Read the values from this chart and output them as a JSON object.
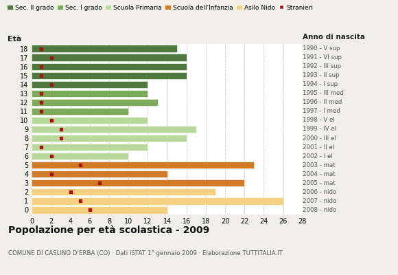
{
  "ages": [
    18,
    17,
    16,
    15,
    14,
    13,
    12,
    11,
    10,
    9,
    8,
    7,
    6,
    5,
    4,
    3,
    2,
    1,
    0
  ],
  "years": [
    "1990 - V sup",
    "1991 - VI sup",
    "1992 - III sup",
    "1993 - II sup",
    "1994 - I sup",
    "1995 - III med",
    "1996 - II med",
    "1997 - I med",
    "1998 - V el",
    "1999 - IV el",
    "2000 - III el",
    "2001 - II el",
    "2002 - I el",
    "2003 - mat",
    "2004 - mat",
    "2005 - mat",
    "2006 - nido",
    "2007 - nido",
    "2008 - nido"
  ],
  "bar_values": [
    15,
    16,
    16,
    16,
    12,
    12,
    13,
    10,
    12,
    17,
    16,
    12,
    10,
    23,
    14,
    22,
    19,
    26,
    14
  ],
  "bar_colors": [
    "#4e7a3e",
    "#4e7a3e",
    "#4e7a3e",
    "#4e7a3e",
    "#4e7a3e",
    "#7aaa5a",
    "#7aaa5a",
    "#7aaa5a",
    "#b8d89c",
    "#b8d89c",
    "#b8d89c",
    "#b8d89c",
    "#b8d89c",
    "#d17a2a",
    "#d17a2a",
    "#d17a2a",
    "#f5d080",
    "#f5d080",
    "#f5d080"
  ],
  "stranieri_values": [
    1,
    2,
    1,
    1,
    2,
    1,
    1,
    1,
    2,
    3,
    3,
    1,
    2,
    5,
    2,
    7,
    4,
    5,
    6
  ],
  "legend_labels": [
    "Sec. II grado",
    "Sec. I grado",
    "Scuola Primaria",
    "Scuola dell'Infanzia",
    "Asilo Nido",
    "Stranieri"
  ],
  "legend_colors": [
    "#4e7a3e",
    "#7aaa5a",
    "#b8d89c",
    "#d17a2a",
    "#f5d080",
    "#aa1111"
  ],
  "title": "Popolazione per età scolastica - 2009",
  "subtitle": "COMUNE DI CASLINO D'ERBA (CO) · Dati ISTAT 1° gennaio 2009 · Elaborazione TUTTITALIA.IT",
  "xlabel_left": "Età",
  "xlabel_right": "Anno di nascita",
  "xlim": [
    0,
    28
  ],
  "xticks": [
    0,
    2,
    4,
    6,
    8,
    10,
    12,
    14,
    16,
    18,
    20,
    22,
    24,
    26,
    28
  ],
  "bg_color": "#f0f0e8",
  "plot_bg": "#ffffff"
}
